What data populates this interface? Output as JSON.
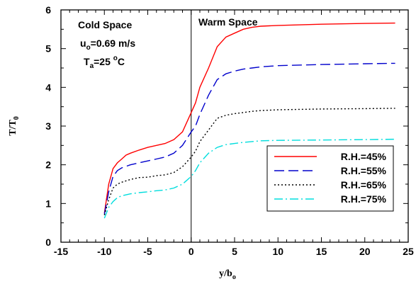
{
  "chart_data": {
    "type": "line",
    "xlabel": {
      "main": "y/b",
      "sub": "o"
    },
    "ylabel": {
      "main": "T/T",
      "sub": "0"
    },
    "xlim": [
      -15,
      25
    ],
    "ylim": [
      0,
      6
    ],
    "xticks": [
      "-15",
      "-10",
      "-5",
      "0",
      "5",
      "10",
      "15",
      "20",
      "25"
    ],
    "yticks": [
      "0",
      "1",
      "2",
      "3",
      "4",
      "5",
      "6"
    ],
    "grid": false,
    "legend_position": "lower-right",
    "annotations": {
      "cold_space": "Cold Space",
      "warm_space": "Warm Space",
      "velocity": {
        "var": "u",
        "sub": "o",
        "rest": "=0.69 m/s"
      },
      "temperature": {
        "var": "T",
        "sub": "a",
        "rest": "=25 ",
        "sup": "o",
        "unit": "C"
      }
    },
    "vertical_line_x": 0,
    "series": [
      {
        "name": "R.H.=45%",
        "color": "#ff0000",
        "dash": "",
        "points": [
          [
            -10,
            0.75
          ],
          [
            -9.5,
            1.5
          ],
          [
            -9,
            1.9
          ],
          [
            -8.5,
            2.05
          ],
          [
            -8,
            2.15
          ],
          [
            -7.5,
            2.25
          ],
          [
            -7,
            2.3
          ],
          [
            -6,
            2.38
          ],
          [
            -5,
            2.45
          ],
          [
            -4,
            2.5
          ],
          [
            -3,
            2.55
          ],
          [
            -2,
            2.65
          ],
          [
            -1,
            2.85
          ],
          [
            0,
            3.35
          ],
          [
            0.5,
            3.6
          ],
          [
            1,
            4.0
          ],
          [
            2,
            4.5
          ],
          [
            3,
            5.05
          ],
          [
            4,
            5.3
          ],
          [
            5,
            5.4
          ],
          [
            6,
            5.5
          ],
          [
            7,
            5.55
          ],
          [
            8,
            5.58
          ],
          [
            10,
            5.6
          ],
          [
            15,
            5.63
          ],
          [
            20,
            5.65
          ],
          [
            23.5,
            5.66
          ]
        ]
      },
      {
        "name": "R.H.=55%",
        "color": "#0000cc",
        "dash": "14 6",
        "points": [
          [
            -10,
            0.72
          ],
          [
            -9.5,
            1.3
          ],
          [
            -9,
            1.7
          ],
          [
            -8.5,
            1.85
          ],
          [
            -8,
            1.92
          ],
          [
            -7,
            2.0
          ],
          [
            -6,
            2.05
          ],
          [
            -5,
            2.1
          ],
          [
            -4,
            2.15
          ],
          [
            -3,
            2.2
          ],
          [
            -2,
            2.3
          ],
          [
            -1,
            2.5
          ],
          [
            0,
            2.85
          ],
          [
            0.5,
            3.0
          ],
          [
            1,
            3.3
          ],
          [
            2,
            3.8
          ],
          [
            3,
            4.2
          ],
          [
            4,
            4.35
          ],
          [
            5,
            4.42
          ],
          [
            6,
            4.47
          ],
          [
            7,
            4.5
          ],
          [
            8,
            4.53
          ],
          [
            10,
            4.56
          ],
          [
            15,
            4.59
          ],
          [
            20,
            4.61
          ],
          [
            23.5,
            4.62
          ]
        ]
      },
      {
        "name": "R.H.=65%",
        "color": "#000000",
        "dash": "2 3",
        "points": [
          [
            -10,
            0.7
          ],
          [
            -9.5,
            1.1
          ],
          [
            -9,
            1.4
          ],
          [
            -8.5,
            1.5
          ],
          [
            -8,
            1.55
          ],
          [
            -7,
            1.62
          ],
          [
            -6,
            1.67
          ],
          [
            -5,
            1.68
          ],
          [
            -4,
            1.72
          ],
          [
            -3,
            1.74
          ],
          [
            -2,
            1.8
          ],
          [
            -1,
            1.95
          ],
          [
            0,
            2.2
          ],
          [
            0.5,
            2.35
          ],
          [
            1,
            2.6
          ],
          [
            2,
            2.9
          ],
          [
            3,
            3.2
          ],
          [
            4,
            3.28
          ],
          [
            5,
            3.32
          ],
          [
            6,
            3.35
          ],
          [
            7,
            3.38
          ],
          [
            8,
            3.4
          ],
          [
            10,
            3.42
          ],
          [
            15,
            3.44
          ],
          [
            20,
            3.45
          ],
          [
            23.5,
            3.46
          ]
        ]
      },
      {
        "name": "R.H.=75%",
        "color": "#00dddd",
        "dash": "12 4 2 4",
        "points": [
          [
            -10,
            0.62
          ],
          [
            -9.5,
            0.9
          ],
          [
            -9,
            1.05
          ],
          [
            -8.5,
            1.15
          ],
          [
            -8,
            1.2
          ],
          [
            -7,
            1.25
          ],
          [
            -6,
            1.28
          ],
          [
            -5,
            1.3
          ],
          [
            -4,
            1.33
          ],
          [
            -3,
            1.35
          ],
          [
            -2,
            1.4
          ],
          [
            -1,
            1.5
          ],
          [
            0,
            1.7
          ],
          [
            0.5,
            1.85
          ],
          [
            1,
            2.05
          ],
          [
            2,
            2.3
          ],
          [
            3,
            2.45
          ],
          [
            4,
            2.52
          ],
          [
            5,
            2.55
          ],
          [
            6,
            2.58
          ],
          [
            7,
            2.6
          ],
          [
            8,
            2.62
          ],
          [
            10,
            2.63
          ],
          [
            15,
            2.64
          ],
          [
            20,
            2.65
          ],
          [
            23.5,
            2.66
          ]
        ]
      }
    ]
  }
}
